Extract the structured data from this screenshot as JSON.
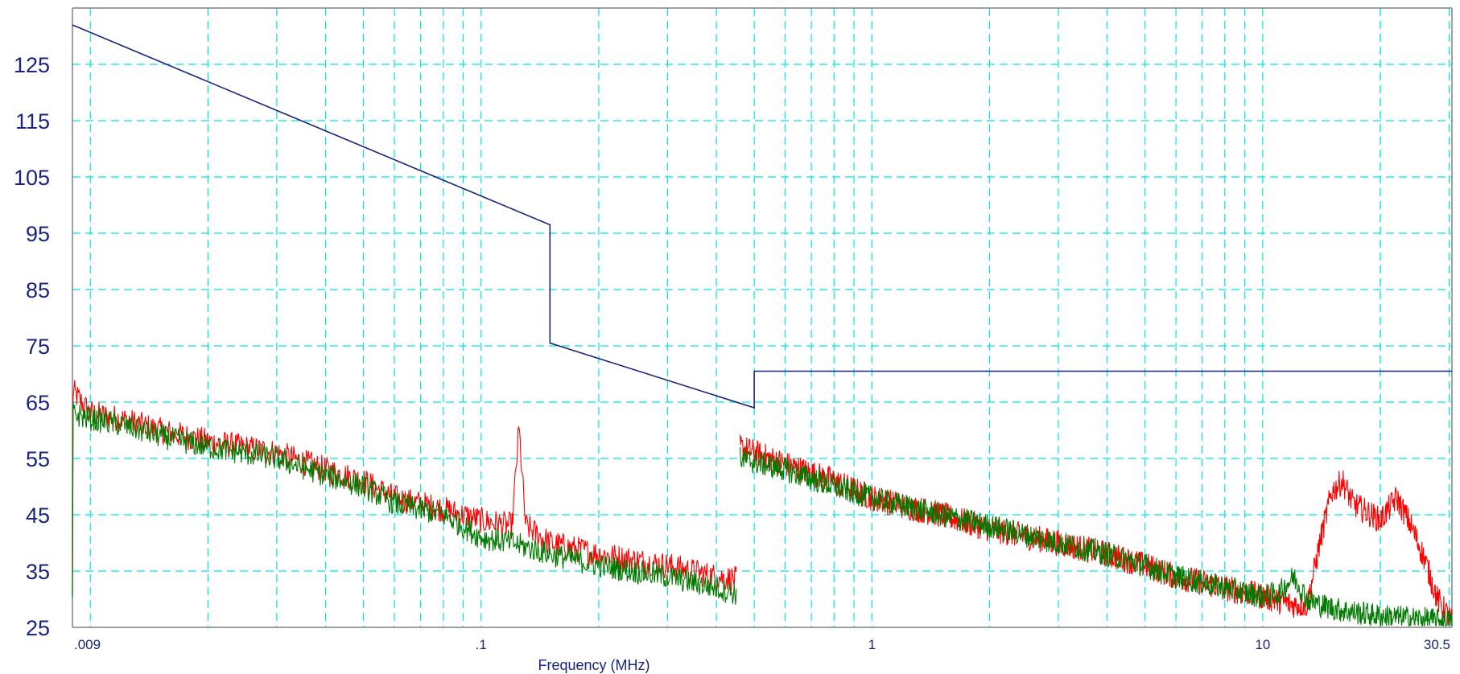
{
  "chart_data": {
    "type": "line",
    "title": "",
    "xlabel": "Frequency (MHz)",
    "ylabel": "",
    "x_scale": "log",
    "xlim": [
      0.009,
      30.5
    ],
    "ylim": [
      25,
      135
    ],
    "grid": true,
    "legend": "none",
    "y_ticks": [
      "125",
      "115",
      "105",
      "95",
      "85",
      "75",
      "65",
      "55",
      "45",
      "35",
      "25"
    ],
    "y_tick_values": [
      125,
      115,
      105,
      95,
      85,
      75,
      65,
      55,
      45,
      35,
      25
    ],
    "x_ticks": [
      ".009",
      ".1",
      "1",
      "10",
      "30.5"
    ],
    "x_tick_values": [
      0.009,
      0.1,
      1,
      10,
      30.5
    ],
    "colors": {
      "limit": "#1a237e",
      "red_trace": "#ff0000",
      "green_trace": "#007a00",
      "grid": "#00e5e5",
      "axis": "#808080"
    },
    "series": [
      {
        "color": "#1a237e",
        "points": [
          [
            0.009,
            132
          ],
          [
            0.15,
            96.5
          ],
          [
            0.15,
            75.5
          ],
          [
            0.5,
            64
          ],
          [
            0.5,
            70.5
          ],
          [
            30.5,
            70.5
          ]
        ]
      },
      {
        "color": "#ff0000",
        "points": [
          [
            0.009,
            67
          ],
          [
            0.01,
            63
          ],
          [
            0.012,
            62
          ],
          [
            0.015,
            60
          ],
          [
            0.02,
            58
          ],
          [
            0.03,
            56
          ],
          [
            0.04,
            53
          ],
          [
            0.05,
            51
          ],
          [
            0.06,
            48
          ],
          [
            0.08,
            46
          ],
          [
            0.1,
            44
          ],
          [
            0.12,
            43
          ],
          [
            0.125,
            60.5
          ],
          [
            0.13,
            43
          ],
          [
            0.15,
            40
          ],
          [
            0.2,
            38
          ],
          [
            0.3,
            36
          ],
          [
            0.4,
            34
          ],
          [
            0.45,
            33.5
          ],
          [
            0.46,
            57
          ],
          [
            0.6,
            54
          ],
          [
            0.8,
            51
          ],
          [
            1,
            48
          ],
          [
            1.5,
            45
          ],
          [
            2,
            42.5
          ],
          [
            3,
            40
          ],
          [
            4,
            38
          ],
          [
            5,
            36
          ],
          [
            6,
            34
          ],
          [
            7,
            33
          ],
          [
            8,
            32
          ],
          [
            10,
            30.5
          ],
          [
            12,
            29
          ],
          [
            13,
            29
          ],
          [
            14,
            40
          ],
          [
            15,
            49
          ],
          [
            16,
            51
          ],
          [
            17,
            47
          ],
          [
            20,
            44
          ],
          [
            22,
            48
          ],
          [
            24,
            43
          ],
          [
            26,
            37
          ],
          [
            28,
            30
          ],
          [
            30.5,
            26
          ]
        ]
      },
      {
        "color": "#007a00",
        "points": [
          [
            0.009,
            63
          ],
          [
            0.01,
            62
          ],
          [
            0.012,
            61
          ],
          [
            0.015,
            59
          ],
          [
            0.02,
            57
          ],
          [
            0.03,
            55
          ],
          [
            0.04,
            52
          ],
          [
            0.05,
            50
          ],
          [
            0.06,
            47
          ],
          [
            0.08,
            45
          ],
          [
            0.1,
            41
          ],
          [
            0.12,
            40
          ],
          [
            0.15,
            38
          ],
          [
            0.2,
            36
          ],
          [
            0.3,
            34
          ],
          [
            0.4,
            32
          ],
          [
            0.45,
            31
          ],
          [
            0.46,
            55
          ],
          [
            0.6,
            53
          ],
          [
            0.8,
            50
          ],
          [
            1,
            48
          ],
          [
            1.5,
            45
          ],
          [
            2,
            43
          ],
          [
            3,
            40
          ],
          [
            4,
            38
          ],
          [
            5,
            36
          ],
          [
            6,
            34
          ],
          [
            7,
            33
          ],
          [
            8,
            32
          ],
          [
            10,
            30.5
          ],
          [
            11,
            31
          ],
          [
            12,
            34
          ],
          [
            13,
            30
          ],
          [
            14,
            29
          ],
          [
            16,
            28
          ],
          [
            20,
            27
          ],
          [
            25,
            26.5
          ],
          [
            30.5,
            26
          ]
        ]
      }
    ]
  }
}
